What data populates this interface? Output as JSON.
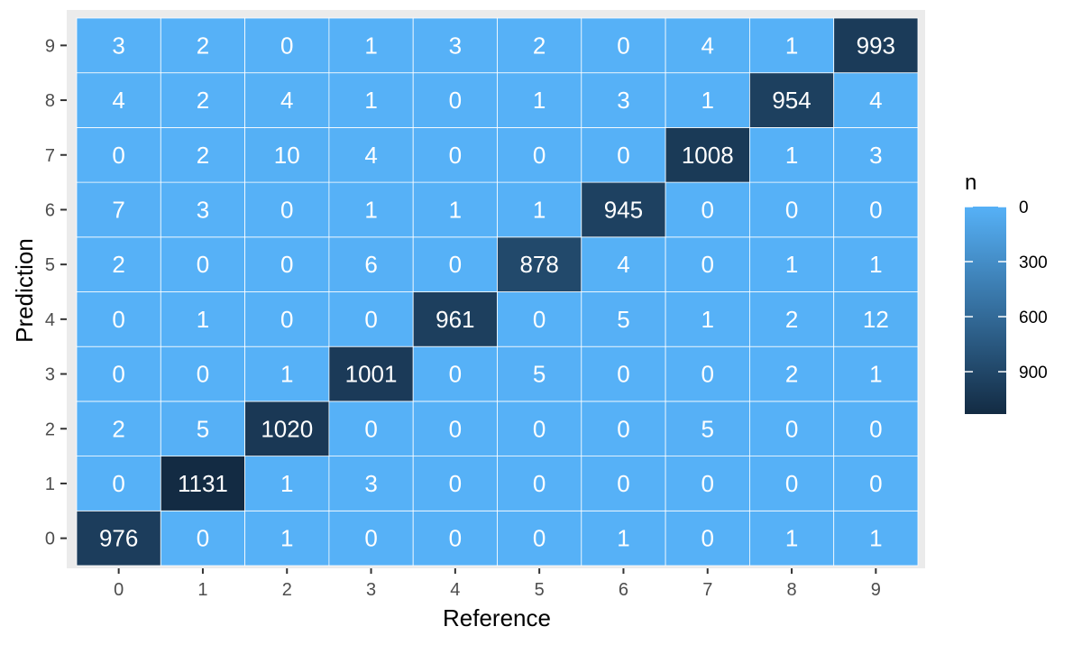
{
  "chart_data": {
    "type": "heatmap",
    "x_categories": [
      "0",
      "1",
      "2",
      "3",
      "4",
      "5",
      "6",
      "7",
      "8",
      "9"
    ],
    "y_categories": [
      "0",
      "1",
      "2",
      "3",
      "4",
      "5",
      "6",
      "7",
      "8",
      "9"
    ],
    "xlabel": "Reference",
    "ylabel": "Prediction",
    "legend": {
      "title": "n",
      "ticks": [
        0,
        300,
        600,
        900
      ],
      "tick_labels": [
        "0",
        "300",
        "600",
        "900"
      ],
      "range": [
        0,
        1131
      ],
      "position": "right"
    },
    "colors": {
      "low": "#56B1F7",
      "high": "#132B43",
      "panel_bg": "#EBEBEB",
      "grid": "#FFFFFF"
    },
    "matrix": [
      [
        976,
        0,
        1,
        0,
        0,
        0,
        1,
        0,
        1,
        1
      ],
      [
        0,
        1131,
        1,
        3,
        0,
        0,
        0,
        0,
        0,
        0
      ],
      [
        2,
        5,
        1020,
        0,
        0,
        0,
        0,
        5,
        0,
        0
      ],
      [
        0,
        0,
        1,
        1001,
        0,
        5,
        0,
        0,
        2,
        1
      ],
      [
        0,
        1,
        0,
        0,
        961,
        0,
        5,
        1,
        2,
        12
      ],
      [
        2,
        0,
        0,
        6,
        0,
        878,
        4,
        0,
        1,
        1
      ],
      [
        7,
        3,
        0,
        1,
        1,
        1,
        945,
        0,
        0,
        0
      ],
      [
        0,
        2,
        10,
        4,
        0,
        0,
        0,
        1008,
        1,
        3
      ],
      [
        4,
        2,
        4,
        1,
        0,
        1,
        3,
        1,
        954,
        4
      ],
      [
        3,
        2,
        0,
        1,
        3,
        2,
        0,
        4,
        1,
        993
      ]
    ]
  }
}
